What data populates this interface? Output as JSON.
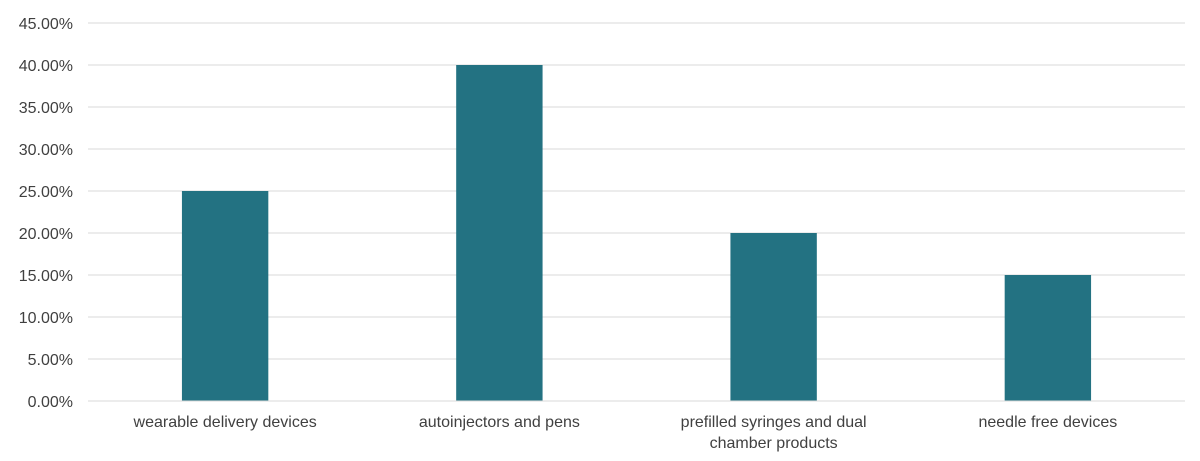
{
  "chart_data": {
    "type": "bar",
    "title": "",
    "xlabel": "",
    "ylabel": "",
    "categories": [
      [
        "wearable delivery devices"
      ],
      [
        "autoinjectors and pens"
      ],
      [
        "prefilled syringes and dual",
        "chamber products"
      ],
      [
        "needle free devices"
      ]
    ],
    "values": [
      0.25,
      0.4,
      0.2,
      0.15
    ],
    "ylim": [
      0,
      0.45
    ],
    "yticks": [
      "0.00%",
      "5.00%",
      "10.00%",
      "15.00%",
      "20.00%",
      "25.00%",
      "30.00%",
      "35.00%",
      "40.00%",
      "45.00%"
    ],
    "grid": true,
    "legend": "none",
    "colors": {
      "bar": "#237282",
      "grid": "#d9d9d9",
      "text": "#404040"
    }
  }
}
